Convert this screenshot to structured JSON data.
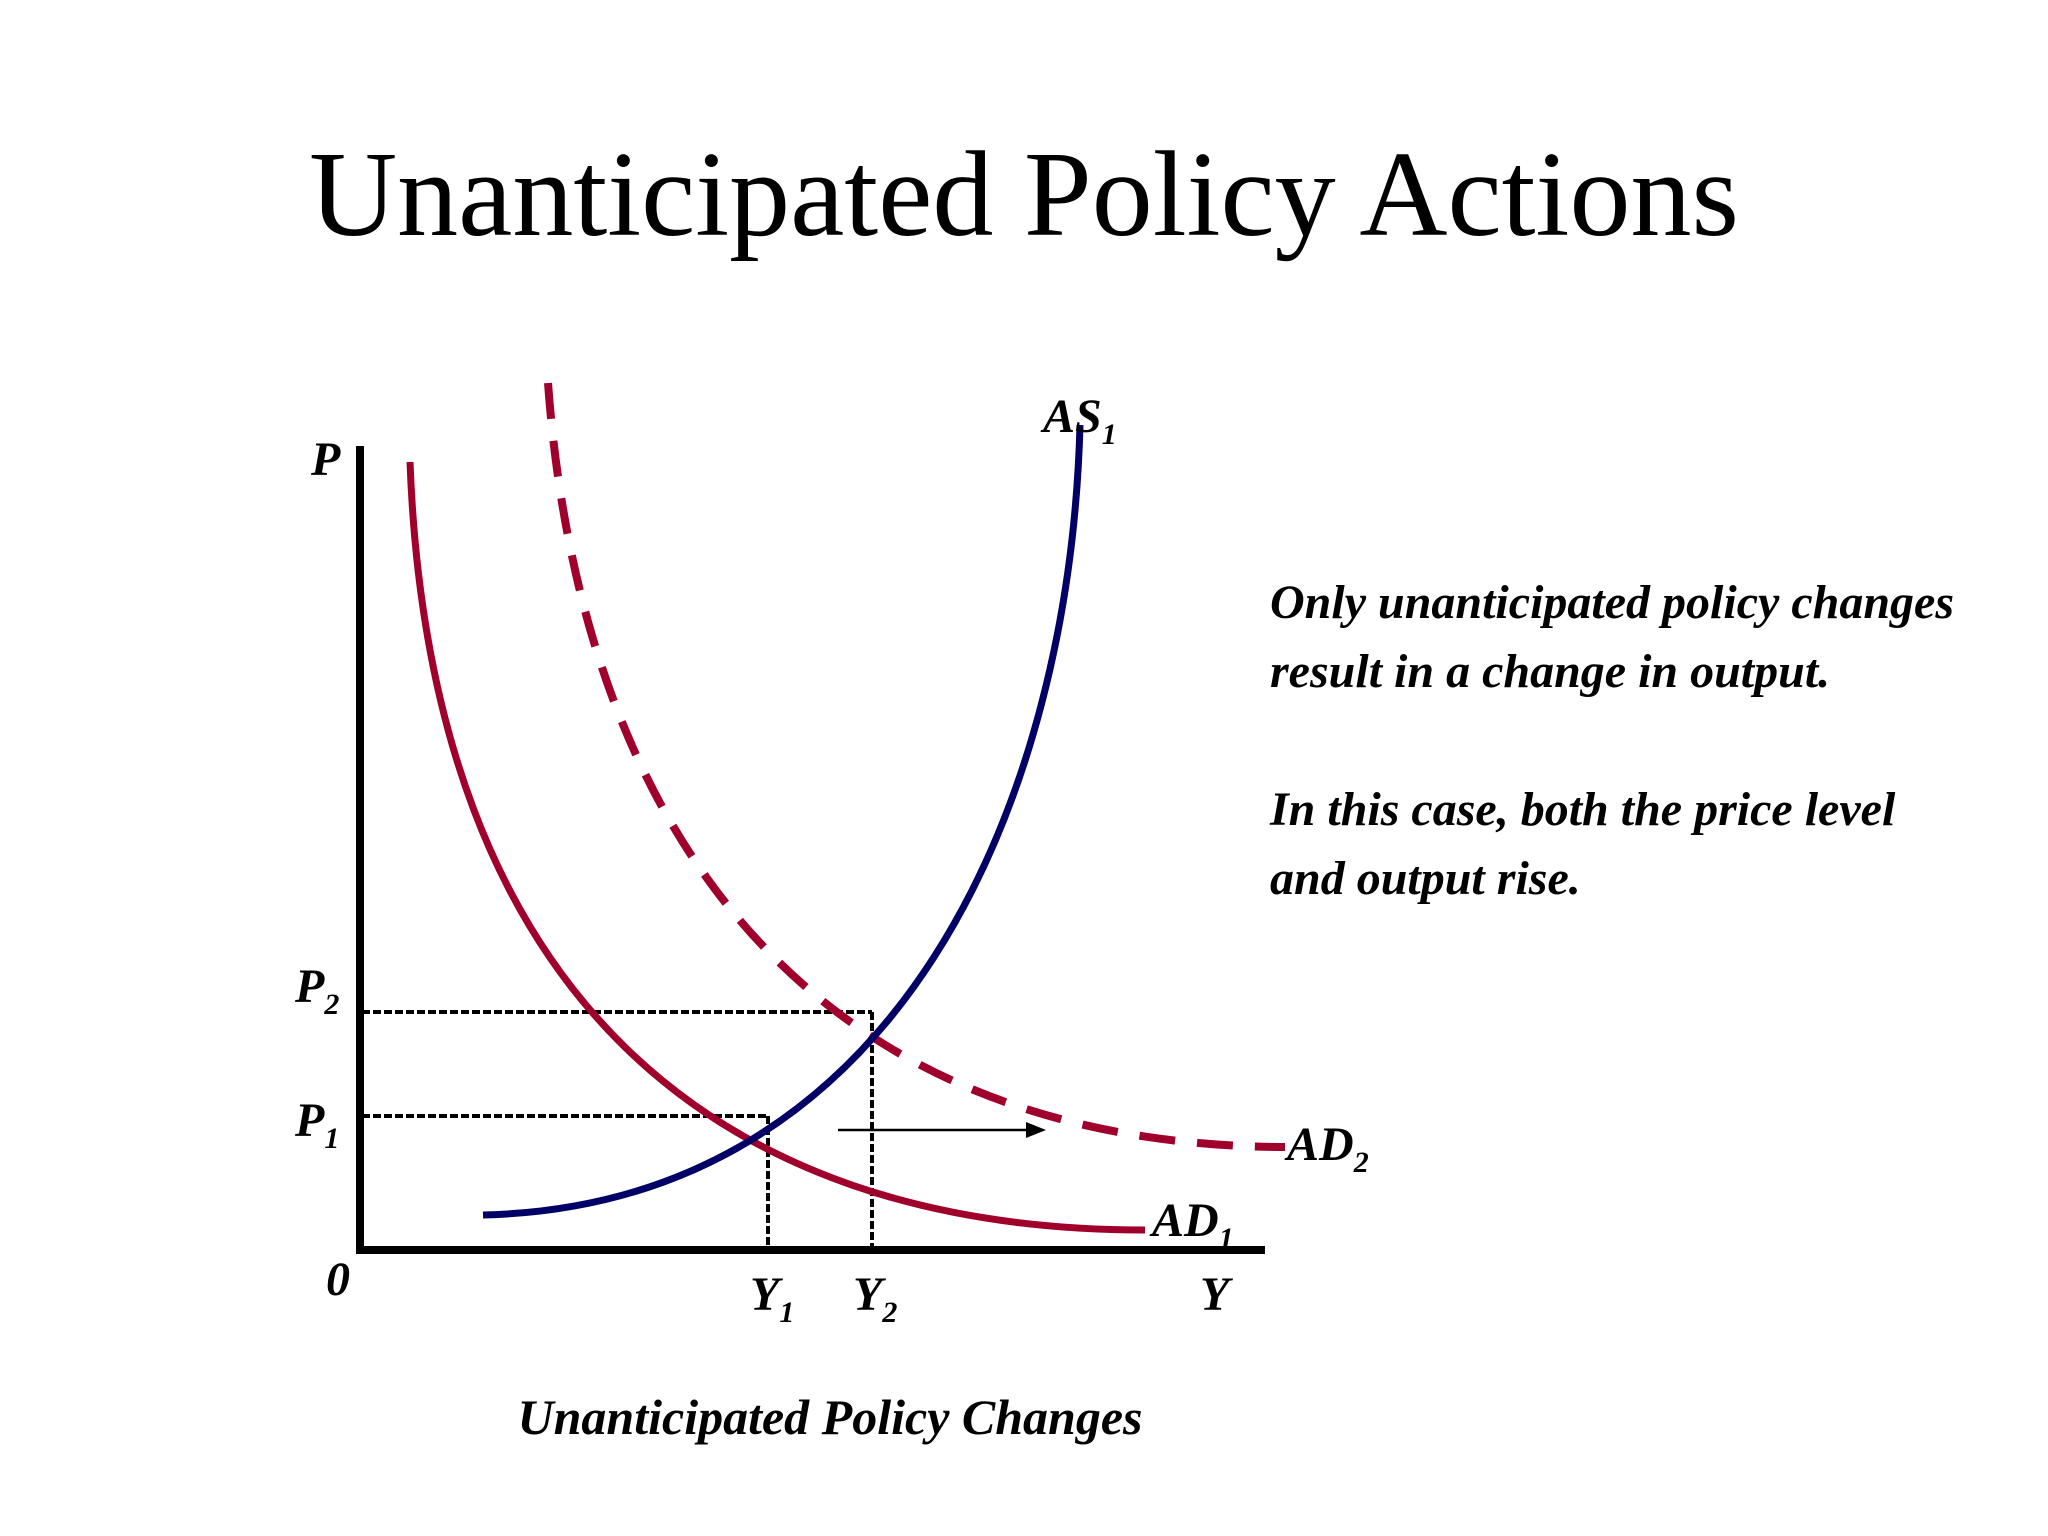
{
  "slide": {
    "title": "Unanticipated Policy Actions",
    "caption": "Unanticipated Policy Changes",
    "notes": [
      "Only unanticipated policy changes result in a change in output.",
      "In this case, both the price level and output rise."
    ]
  },
  "diagram": {
    "axis_labels": {
      "y": "P",
      "x": "Y",
      "origin": "0"
    },
    "price_levels": [
      {
        "letter": "P",
        "sub": "2"
      },
      {
        "letter": "P",
        "sub": "1"
      }
    ],
    "output_levels": [
      {
        "letter": "Y",
        "sub": "1"
      },
      {
        "letter": "Y",
        "sub": "2"
      }
    ],
    "curves": {
      "as1": {
        "letter": "AS",
        "sub": "1"
      },
      "ad1": {
        "letter": "AD",
        "sub": "1"
      },
      "ad2": {
        "letter": "AD",
        "sub": "2"
      }
    },
    "colors": {
      "aggregate_demand": "#a0002c",
      "aggregate_supply": "#000066",
      "axes": "#000000"
    },
    "shift_arrow": "right"
  }
}
